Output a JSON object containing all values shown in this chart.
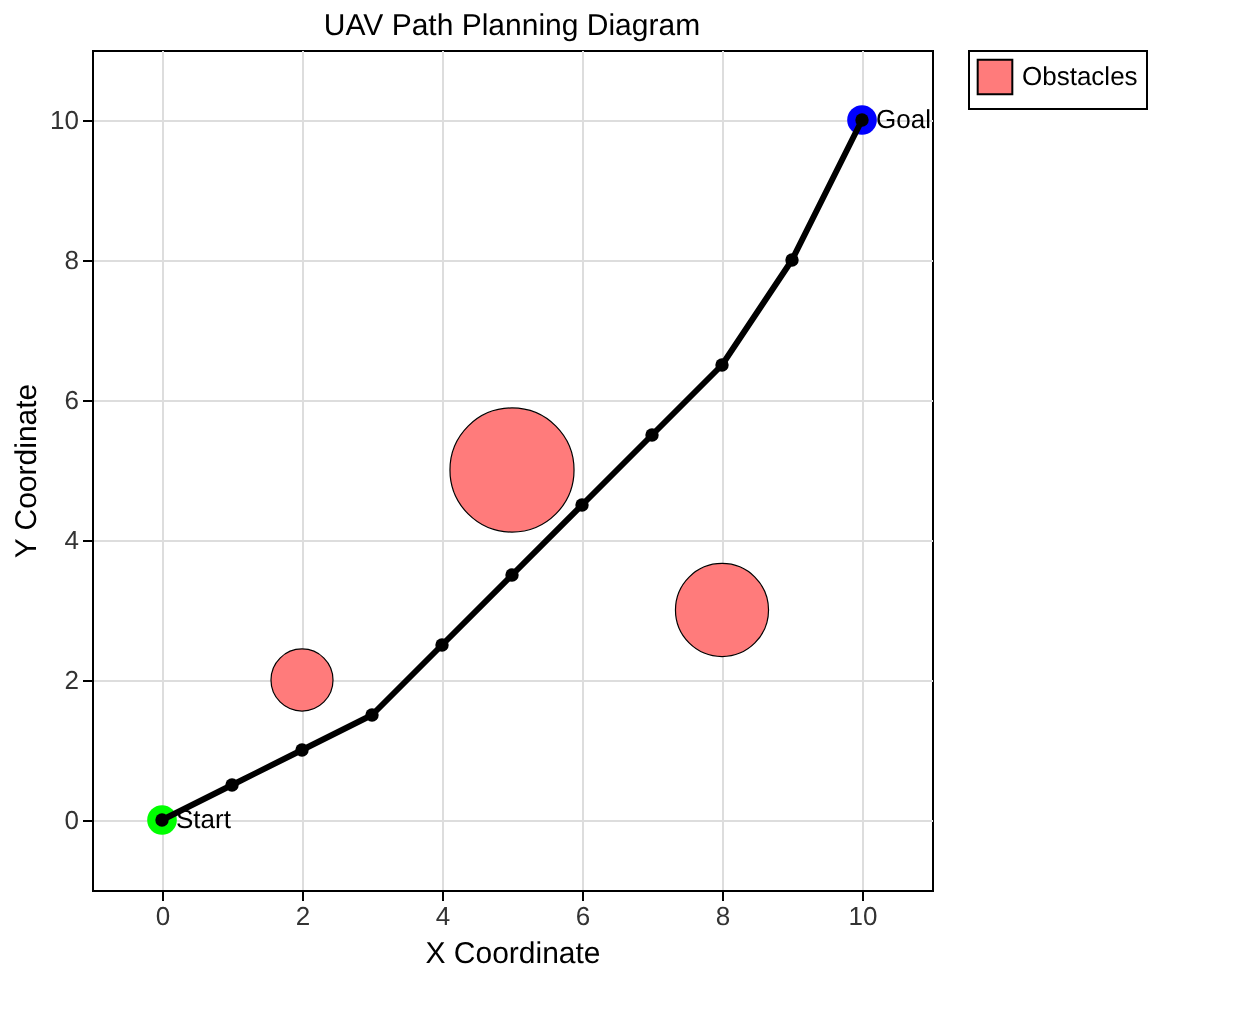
{
  "chart_data": {
    "type": "line",
    "title": "UAV Path Planning Diagram",
    "xlabel": "X Coordinate",
    "ylabel": "Y Coordinate",
    "xlim": [
      -1,
      11
    ],
    "ylim": [
      -1,
      11
    ],
    "xticks": [
      0,
      2,
      4,
      6,
      8,
      10
    ],
    "yticks": [
      0,
      2,
      4,
      6,
      8,
      10
    ],
    "grid": true,
    "legend": "top right",
    "series": [
      {
        "type": "bubble",
        "name": "Obstacles",
        "color": "#ff7b7b",
        "x": [
          2,
          5,
          8
        ],
        "values": [
          2,
          5,
          3
        ],
        "sizes": [
          0.25,
          1,
          0.5625
        ]
      },
      {
        "type": "scatter",
        "color": "#00ff00",
        "marker": "circle",
        "x": [
          0
        ],
        "values": [
          0
        ]
      },
      {
        "type": "scatter",
        "color": "#0000ff",
        "marker": "circle",
        "x": [
          10
        ],
        "values": [
          10
        ]
      },
      {
        "color": "#000000",
        "marker": "circle",
        "line_style": "solid",
        "x": [
          0,
          1,
          2,
          3,
          4,
          5,
          6,
          7,
          8,
          9,
          10
        ],
        "values": [
          0,
          0.5,
          1,
          1.5,
          2.5,
          3.5,
          4.5,
          5.5,
          6.5,
          8,
          10
        ]
      }
    ],
    "annotations": [
      {
        "text": "Start",
        "x": 0,
        "y": 0
      },
      {
        "text": "Goal",
        "x": 10,
        "y": 10
      }
    ]
  }
}
